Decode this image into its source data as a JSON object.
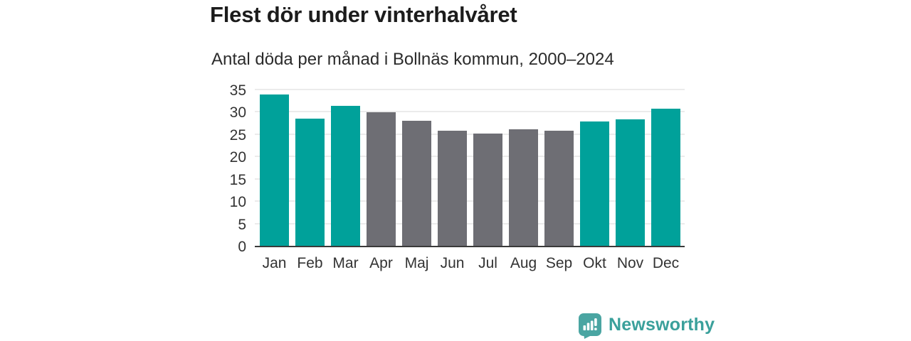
{
  "header": {
    "title": "Flest dör under vinterhalvåret",
    "subtitle": "Antal döda per månad i Bollnäs kommun, 2000–2024"
  },
  "chart_data": {
    "type": "bar",
    "title": "Flest dör under vinterhalvåret",
    "subtitle": "Antal döda per månad i Bollnäs kommun, 2000–2024",
    "categories": [
      "Jan",
      "Feb",
      "Mar",
      "Apr",
      "Maj",
      "Jun",
      "Jul",
      "Aug",
      "Sep",
      "Okt",
      "Nov",
      "Dec"
    ],
    "values": [
      33.9,
      28.5,
      31.4,
      29.9,
      28.0,
      25.8,
      25.2,
      26.1,
      25.7,
      27.9,
      28.3,
      30.7
    ],
    "bar_colors": [
      "#00a19a",
      "#00a19a",
      "#00a19a",
      "#6e6e74",
      "#6e6e74",
      "#6e6e74",
      "#6e6e74",
      "#6e6e74",
      "#6e6e74",
      "#00a19a",
      "#00a19a",
      "#00a19a"
    ],
    "colors": {
      "winter_half": "#00a19a",
      "summer_half": "#6e6e74",
      "axis_line": "#3a3a3a",
      "grid_line": "#ebebeb",
      "tick_label": "#333333"
    },
    "xlabel": "",
    "ylabel": "",
    "ylim": [
      0,
      35
    ],
    "yticks": [
      0,
      5,
      10,
      15,
      20,
      25,
      30,
      35
    ],
    "grid": "horizontal",
    "legend": "none"
  },
  "footer": {
    "brand": "Newsworthy",
    "brand_color": "#3aa09b",
    "logo_icon": "bar-chart-speech-bubble-icon",
    "logo_color": "#4aa5a2"
  }
}
